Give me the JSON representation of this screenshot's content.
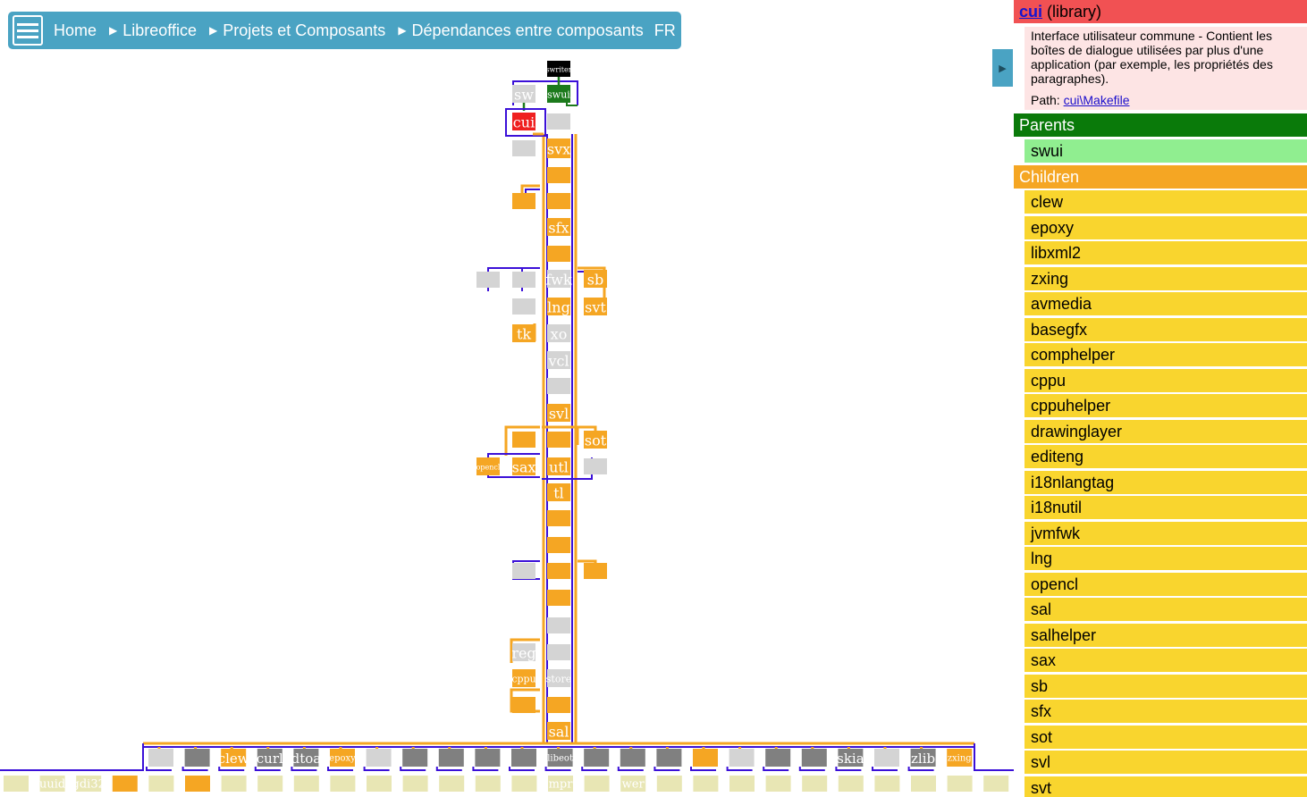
{
  "breadcrumb": {
    "items": [
      "Home",
      "Libreoffice",
      "Projets et Composants",
      "Dépendances entre composants"
    ],
    "language": "FR"
  },
  "panel": {
    "component_name": "cui",
    "component_type": "(library)",
    "description": "Interface utilisateur commune - Contient les boîtes de dialogue utilisées par plus d'une application (par exemple, les propriétés des paragraphes).",
    "path_label": "Path:",
    "path_link": "cui\\Makefile",
    "parents_title": "Parents",
    "parents": [
      "swui"
    ],
    "children_title": "Children",
    "children": [
      "clew",
      "epoxy",
      "libxml2",
      "zxing",
      "avmedia",
      "basegfx",
      "comphelper",
      "cppu",
      "cppuhelper",
      "drawinglayer",
      "editeng",
      "i18nlangtag",
      "i18nutil",
      "jvmfwk",
      "lng",
      "opencl",
      "sal",
      "salhelper",
      "sax",
      "sb",
      "sfx",
      "sot",
      "svl",
      "svt"
    ]
  },
  "colors": {
    "root": "#000000",
    "parent": "#1c7a1c",
    "selected": "#ef2020",
    "child": "#f5a623",
    "other": "#d4d4d4",
    "external": "#808080",
    "leaf": "#e8e6b4",
    "edge_child": "#f5a623",
    "edge_other": "#3b10d8"
  },
  "graph": {
    "nodes": [
      {
        "label": "swriter",
        "kind": "root"
      },
      {
        "label": "sw",
        "kind": "other"
      },
      {
        "label": "swui",
        "kind": "parent"
      },
      {
        "label": "cui",
        "kind": "selected"
      },
      {
        "label": "svx",
        "kind": "child"
      },
      {
        "label": "sfx",
        "kind": "child"
      },
      {
        "label": "fwk",
        "kind": "other"
      },
      {
        "label": "sb",
        "kind": "child"
      },
      {
        "label": "lng",
        "kind": "child"
      },
      {
        "label": "svt",
        "kind": "child"
      },
      {
        "label": "tk",
        "kind": "child"
      },
      {
        "label": "xo",
        "kind": "other"
      },
      {
        "label": "vcl",
        "kind": "other"
      },
      {
        "label": "svl",
        "kind": "child"
      },
      {
        "label": "sot",
        "kind": "child"
      },
      {
        "label": "opencl",
        "kind": "child"
      },
      {
        "label": "sax",
        "kind": "child"
      },
      {
        "label": "utl",
        "kind": "child"
      },
      {
        "label": "tl",
        "kind": "child"
      },
      {
        "label": "reg",
        "kind": "other"
      },
      {
        "label": "cppu",
        "kind": "child"
      },
      {
        "label": "store",
        "kind": "other"
      },
      {
        "label": "sal",
        "kind": "child"
      },
      {
        "label": "clew",
        "kind": "child"
      },
      {
        "label": "curl",
        "kind": "external"
      },
      {
        "label": "dtoa",
        "kind": "external"
      },
      {
        "label": "epoxy",
        "kind": "child"
      },
      {
        "label": "libeot",
        "kind": "external"
      },
      {
        "label": "skia",
        "kind": "external"
      },
      {
        "label": "zlib",
        "kind": "external"
      },
      {
        "label": "zxing",
        "kind": "child"
      },
      {
        "label": "uuid",
        "kind": "leaf"
      },
      {
        "label": "gdi32",
        "kind": "leaf"
      },
      {
        "label": "mpr",
        "kind": "leaf"
      },
      {
        "label": "wer",
        "kind": "leaf"
      }
    ]
  }
}
